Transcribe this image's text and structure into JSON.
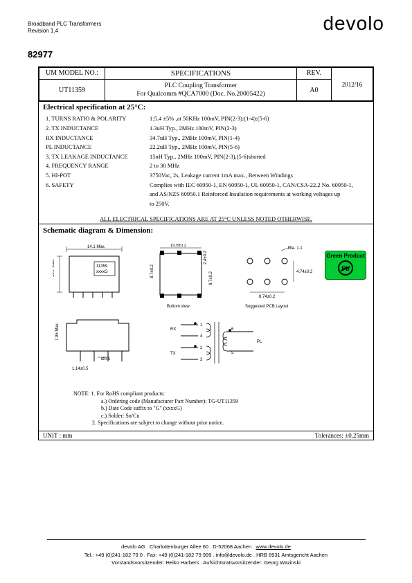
{
  "header": {
    "line1": "Broadband PLC Transformers",
    "line2": "Revision 1.4",
    "logo": "devolo",
    "part_number": "82977"
  },
  "spec_header": {
    "model_label": "UM MODEL NO.:",
    "model_value": "UT11359",
    "spec_label": "SPECIFICATIONS",
    "rev_label": "REV.",
    "rev_value": "A0",
    "date_value": "2012/16",
    "desc_line1": "PLC Coupling Transformer",
    "desc_line2": "For Qualcomm #QCA7000 (Doc. No.20005422)"
  },
  "elec_spec": {
    "title": "Electrical specification at 25°C:",
    "rows": [
      {
        "label": "1. TURNS RATIO & POLARITY",
        "value": "1:5.4 ±5% ,at 50KHz 100mV, PIN(2-3):(1-4):(5-6)"
      },
      {
        "label": "2. TX INDUCTANCE",
        "value": "1.3uH Typ., 2MHz 100mV, PIN(2-3)"
      },
      {
        "label": "    RX INDUCTANCE",
        "value": "34.7uH Typ., 2MHz 100mV, PIN(1-4)"
      },
      {
        "label": "    PL INDUCTANCE",
        "value": "22.2uH Typ., 2MHz 100mV, PIN(5-6)"
      },
      {
        "label": "3. TX LEAKAGE INDUCTANCE",
        "value": "15nH Typ., 2MHz 100mV, PIN(2-3),(5-6)shorted"
      },
      {
        "label": "4. FREQUENCY RANGE",
        "value": "2 to 30 MHz"
      },
      {
        "label": "5. HI-POT",
        "value": "3750Vac, 2s, Leakage current 1mA max., Between Windings"
      },
      {
        "label": "6. SAFETY",
        "value": "Complies with IEC 60950-1, EN 60950-1, UL 60950-1, CAN/CSA-22.2 No. 60950-1,"
      },
      {
        "label": "",
        "value": "and AS/NZS 60950.1 Reinforced Insulation requirements at working voltages up"
      },
      {
        "label": "",
        "value": "to 250V."
      }
    ],
    "note": "ALL ELECTRICAL SPECIFICATIONS ARE AT 25°C UNLESS NOTED OTHERWISE."
  },
  "schematic": {
    "title": "Schematic diagram & Dimension:",
    "dims": {
      "top_width": "14.1 Max.",
      "height_left": "10.7 Max.",
      "part_label": "11359\nxxxxG",
      "bottom_width": "10.6±0.2",
      "bottom_height1": "8.7±0.2",
      "bottom_height2": "2.4±0.2",
      "bottom_height3": "8.7±0.2",
      "bottom_view": "Bottom view",
      "pcb_w": "8.74±0.2",
      "pcb_h": "4.74±0.2",
      "pcb_dia": "Dia. 1.1",
      "pcb_label": "Suggested PCB Layout",
      "side_h": "7.95 Max.",
      "lead_d": "Ø0.5",
      "lead_s": "1.14±0.5",
      "pins": {
        "rx": "RX",
        "tx": "TX",
        "pl": "PL",
        "p1": "1",
        "p2": "2",
        "p3": "3",
        "p4": "4",
        "p5": "5",
        "p6": "6"
      }
    },
    "badge": {
      "text": "Green Product",
      "pb": "Pb"
    },
    "notes": {
      "n1": "NOTE: 1. For RoHS compliant products:",
      "n1a": "a.) Ordering code (Manufacturer Part Number): TG-UT11359",
      "n1b": "b.) Date Code suffix to \"G\" (xxxxG)",
      "n1c": "c.) Solder: Sn/Cu",
      "n2": "2. Specifications are subject to change without prior notice."
    },
    "unit_label": "UNIT : mm",
    "tol_label": "Tolerances: ±0.25mm"
  },
  "footer": {
    "line1": "devolo AG . Charlottenburger Allee 60 . D-52068 Aachen . ",
    "link": "www.devolo.de",
    "line2": "Tel.: +49 (0)241-182 79 0 . Fax: +49 (0)241-182 79 999 . info@devolo.de . HRB 8931 Amtsgericht Aachen",
    "line3": "Vorstandsvorsitzender: Heiko Harbers . Aufsichtsratsvorsitzender: Georg Wazinski"
  },
  "colors": {
    "text": "#000000",
    "bg": "#ffffff",
    "green": "#00cc33",
    "green_border": "#006600"
  }
}
